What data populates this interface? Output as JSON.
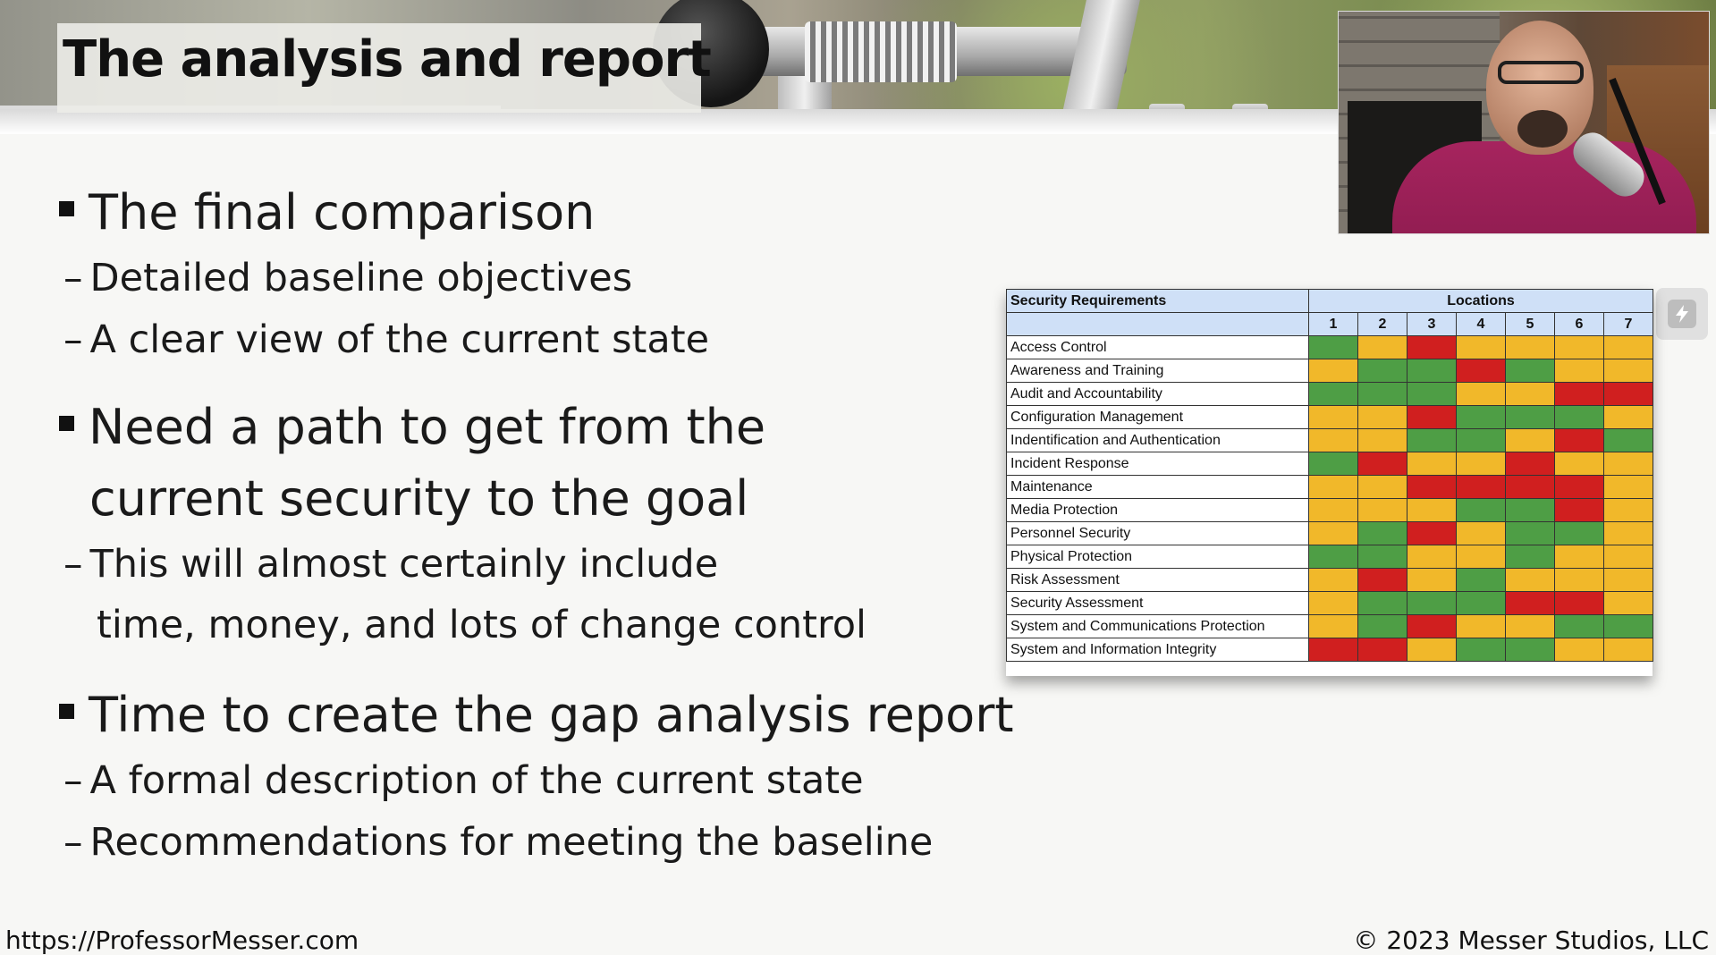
{
  "slide": {
    "title": "The analysis and report",
    "bullets": [
      {
        "text": "The final comparison",
        "subs": [
          "Detailed baseline objectives",
          "A clear view of the current state"
        ]
      },
      {
        "text_line1": "Need a path to get from the",
        "text_line2": "current security to the goal",
        "sub_line1": "This will almost certainly include",
        "sub_line2": "time, money, and lots of change control"
      },
      {
        "text": "Time to create the gap analysis report",
        "subs": [
          "A formal description of the current state",
          "Recommendations for meeting the baseline"
        ]
      }
    ],
    "dash": "–"
  },
  "table": {
    "header_requirements": "Security Requirements",
    "header_locations": "Locations",
    "location_numbers": [
      "1",
      "2",
      "3",
      "4",
      "5",
      "6",
      "7"
    ],
    "status_colors": {
      "G": "#4e9e45",
      "Y": "#f1b82a",
      "R": "#d01f1f"
    },
    "rows": [
      {
        "name": "Access Control",
        "cells": [
          "G",
          "Y",
          "R",
          "Y",
          "Y",
          "Y",
          "Y"
        ]
      },
      {
        "name": "Awareness and Training",
        "cells": [
          "Y",
          "G",
          "G",
          "R",
          "G",
          "Y",
          "Y"
        ]
      },
      {
        "name": "Audit and Accountability",
        "cells": [
          "G",
          "G",
          "G",
          "Y",
          "Y",
          "R",
          "R"
        ]
      },
      {
        "name": "Configuration Management",
        "cells": [
          "Y",
          "Y",
          "R",
          "G",
          "G",
          "G",
          "Y"
        ]
      },
      {
        "name": "Indentification and Authentication",
        "cells": [
          "Y",
          "Y",
          "G",
          "G",
          "Y",
          "R",
          "G"
        ]
      },
      {
        "name": "Incident Response",
        "cells": [
          "G",
          "R",
          "Y",
          "Y",
          "R",
          "Y",
          "Y"
        ]
      },
      {
        "name": "Maintenance",
        "cells": [
          "Y",
          "Y",
          "R",
          "R",
          "R",
          "R",
          "Y"
        ]
      },
      {
        "name": "Media Protection",
        "cells": [
          "Y",
          "Y",
          "Y",
          "G",
          "G",
          "R",
          "Y"
        ]
      },
      {
        "name": "Personnel Security",
        "cells": [
          "Y",
          "G",
          "R",
          "Y",
          "G",
          "G",
          "Y"
        ]
      },
      {
        "name": "Physical Protection",
        "cells": [
          "G",
          "G",
          "Y",
          "Y",
          "G",
          "Y",
          "Y"
        ]
      },
      {
        "name": "Risk Assessment",
        "cells": [
          "Y",
          "R",
          "Y",
          "G",
          "Y",
          "Y",
          "Y"
        ]
      },
      {
        "name": "Security Assessment",
        "cells": [
          "Y",
          "G",
          "G",
          "G",
          "R",
          "R",
          "Y"
        ]
      },
      {
        "name": "System and Communications Protection",
        "cells": [
          "Y",
          "G",
          "R",
          "Y",
          "Y",
          "G",
          "G"
        ]
      },
      {
        "name": "System and Information Integrity",
        "cells": [
          "R",
          "R",
          "Y",
          "G",
          "G",
          "Y",
          "Y"
        ]
      }
    ]
  },
  "footer": {
    "left": "https://ProfessorMesser.com",
    "right": "© 2023 Messer Studios, LLC"
  },
  "icons": {
    "sidebar_tool": "lightning-icon"
  }
}
